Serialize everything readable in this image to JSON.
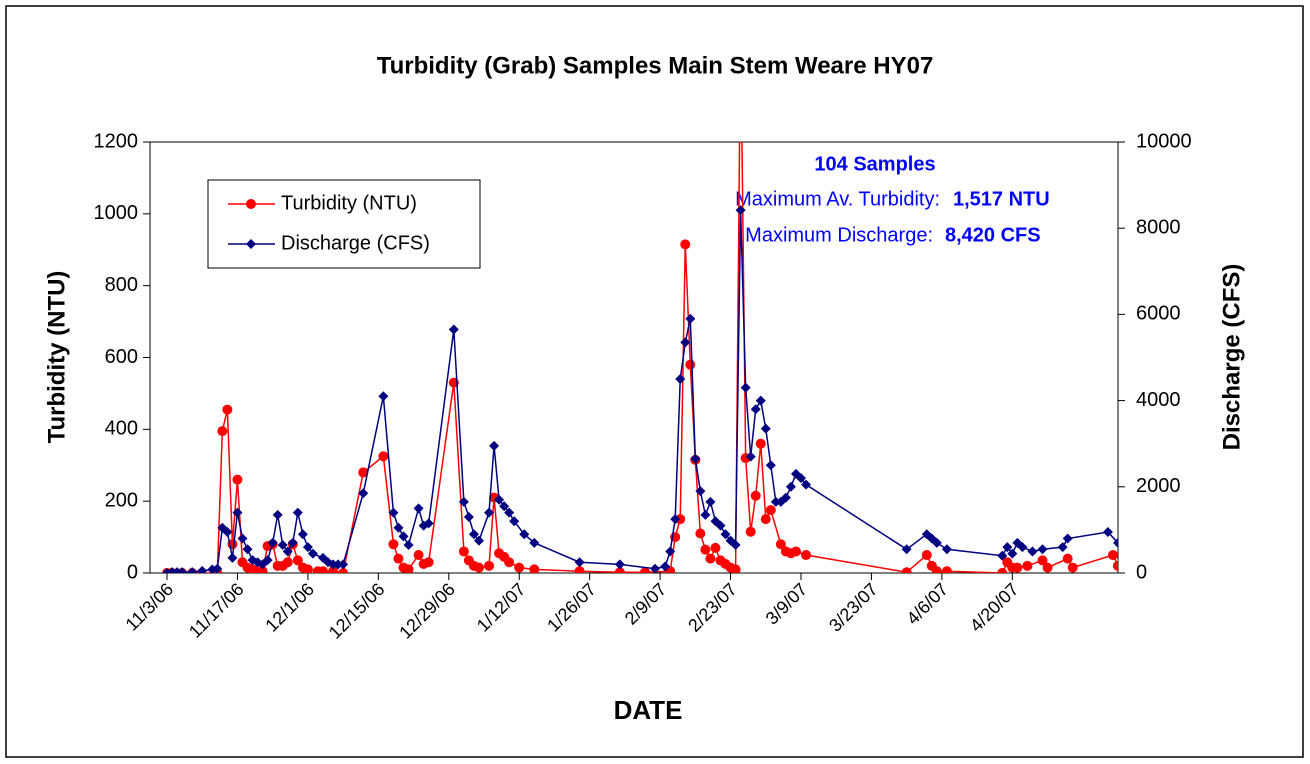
{
  "chart_data": {
    "type": "line",
    "title": "Turbidity (Grab) Samples Main Stem Weare HY07",
    "xlabel": "DATE",
    "ylabel": "Turbidity (NTU)",
    "y2label": "Discharge (CFS)",
    "annotations": [
      "104 Samples",
      "Maximum Av. Turbidity:",
      "1,517 NTU",
      "Maximum Discharge:",
      "8,420 CFS"
    ],
    "xlim": [
      "11/3/06",
      "5/11/07"
    ],
    "xticks": [
      "11/3/06",
      "11/17/06",
      "12/1/06",
      "12/15/06",
      "12/29/06",
      "1/12/07",
      "1/26/07",
      "2/9/07",
      "2/23/07",
      "3/9/07",
      "3/23/07",
      "4/6/07",
      "4/20/07"
    ],
    "ylim": [
      0,
      1200
    ],
    "yticks": [
      0,
      200,
      400,
      600,
      800,
      1000,
      1200
    ],
    "y2lim": [
      0,
      10000
    ],
    "y2ticks": [
      0,
      2000,
      4000,
      6000,
      8000,
      10000
    ],
    "legend": "upper left",
    "series": [
      {
        "name": "Turbidity (NTU)",
        "color": "#ff0000",
        "marker": "circle",
        "x": [
          "11/3/06",
          "11/4/06",
          "11/6/06",
          "11/8/06",
          "11/13/06",
          "11/14/06",
          "11/15/06",
          "11/16/06",
          "11/17/06",
          "11/18/06",
          "11/19/06",
          "11/20/06",
          "11/21/06",
          "11/22/06",
          "11/23/06",
          "11/24/06",
          "11/25/06",
          "11/26/06",
          "11/27/06",
          "11/28/06",
          "11/29/06",
          "11/30/06",
          "12/1/06",
          "12/3/06",
          "12/4/06",
          "12/6/06",
          "12/8/06",
          "12/12/06",
          "12/16/06",
          "12/18/06",
          "12/19/06",
          "12/20/06",
          "12/21/06",
          "12/23/06",
          "12/24/06",
          "12/25/06",
          "12/30/06",
          "1/1/07",
          "1/2/07",
          "1/3/07",
          "1/4/07",
          "1/6/07",
          "1/7/07",
          "1/8/07",
          "1/9/07",
          "1/10/07",
          "1/12/07",
          "1/15/07",
          "1/24/07",
          "2/1/07",
          "2/6/07",
          "2/11/07",
          "2/12/07",
          "2/13/07",
          "2/14/07",
          "2/15/07",
          "2/16/07",
          "2/17/07",
          "2/18/07",
          "2/19/07",
          "2/20/07",
          "2/21/07",
          "2/22/07",
          "2/23/07",
          "2/24/07",
          "2/25/07",
          "2/26/07",
          "2/27/07",
          "2/28/07",
          "3/1/07",
          "3/2/07",
          "3/3/07",
          "3/5/07",
          "3/6/07",
          "3/7/07",
          "3/8/07",
          "3/10/07",
          "3/30/07",
          "4/3/07",
          "4/4/07",
          "4/5/07",
          "4/7/07",
          "4/18/07",
          "4/19/07",
          "4/20/07",
          "4/21/07",
          "4/23/07",
          "4/26/07",
          "4/27/07",
          "5/1/07",
          "5/2/07",
          "5/10/07",
          "5/11/07"
        ],
        "values": [
          0,
          0,
          0,
          0,
          0,
          395,
          455,
          80,
          260,
          30,
          15,
          10,
          5,
          5,
          75,
          80,
          20,
          20,
          30,
          80,
          35,
          15,
          10,
          5,
          5,
          5,
          0,
          280,
          325,
          80,
          40,
          15,
          10,
          50,
          25,
          30,
          530,
          60,
          35,
          20,
          15,
          20,
          210,
          55,
          45,
          30,
          15,
          10,
          5,
          2,
          2,
          5,
          100,
          150,
          915,
          580,
          315,
          110,
          65,
          40,
          70,
          35,
          25,
          15,
          10,
          1517,
          320,
          115,
          215,
          360,
          150,
          175,
          80,
          60,
          55,
          60,
          50,
          2,
          50,
          20,
          5,
          5,
          0,
          30,
          15,
          15,
          20,
          35,
          15,
          40,
          15,
          50,
          20
        ]
      },
      {
        "name": "Discharge (CFS)",
        "color": "#000080",
        "marker": "diamond",
        "axis": "y2",
        "x": [
          "11/3/06",
          "11/4/06",
          "11/5/06",
          "11/6/06",
          "11/8/06",
          "11/10/06",
          "11/12/06",
          "11/13/06",
          "11/14/06",
          "11/15/06",
          "11/16/06",
          "11/17/06",
          "11/18/06",
          "11/19/06",
          "11/20/06",
          "11/21/06",
          "11/22/06",
          "11/23/06",
          "11/24/06",
          "11/25/06",
          "11/26/06",
          "11/27/06",
          "11/28/06",
          "11/29/06",
          "11/30/06",
          "12/1/06",
          "12/2/06",
          "12/4/06",
          "12/5/06",
          "12/6/06",
          "12/7/06",
          "12/8/06",
          "12/12/06",
          "12/16/06",
          "12/18/06",
          "12/19/06",
          "12/20/06",
          "12/21/06",
          "12/23/06",
          "12/24/06",
          "12/25/06",
          "12/30/06",
          "1/1/07",
          "1/2/07",
          "1/3/07",
          "1/4/07",
          "1/6/07",
          "1/7/07",
          "1/8/07",
          "1/9/07",
          "1/10/07",
          "1/11/07",
          "1/13/07",
          "1/15/07",
          "1/24/07",
          "2/1/07",
          "2/8/07",
          "2/10/07",
          "2/11/07",
          "2/12/07",
          "2/13/07",
          "2/14/07",
          "2/15/07",
          "2/16/07",
          "2/17/07",
          "2/18/07",
          "2/19/07",
          "2/20/07",
          "2/21/07",
          "2/22/07",
          "2/23/07",
          "2/24/07",
          "2/25/07",
          "2/26/07",
          "2/27/07",
          "2/28/07",
          "3/1/07",
          "3/2/07",
          "3/3/07",
          "3/4/07",
          "3/5/07",
          "3/6/07",
          "3/7/07",
          "3/8/07",
          "3/9/07",
          "3/10/07",
          "3/30/07",
          "4/3/07",
          "4/4/07",
          "4/5/07",
          "4/7/07",
          "4/18/07",
          "4/19/07",
          "4/20/07",
          "4/21/07",
          "4/22/07",
          "4/24/07",
          "4/26/07",
          "4/30/07",
          "5/1/07",
          "5/9/07",
          "5/11/07"
        ],
        "values": [
          0,
          20,
          20,
          20,
          20,
          50,
          80,
          100,
          1050,
          950,
          350,
          1400,
          800,
          550,
          300,
          250,
          200,
          300,
          700,
          1350,
          650,
          500,
          700,
          1400,
          900,
          600,
          450,
          350,
          250,
          200,
          200,
          200,
          1850,
          4100,
          1400,
          1050,
          850,
          650,
          1500,
          1100,
          1150,
          5650,
          1650,
          1300,
          900,
          750,
          1400,
          2950,
          1700,
          1550,
          1400,
          1200,
          900,
          700,
          250,
          200,
          100,
          150,
          500,
          1250,
          4500,
          5350,
          5900,
          2650,
          1900,
          1350,
          1650,
          1200,
          1100,
          900,
          750,
          650,
          8420,
          4300,
          2700,
          3800,
          4000,
          3350,
          2500,
          1650,
          1650,
          1750,
          2000,
          2300,
          2200,
          2050,
          550,
          900,
          800,
          700,
          550,
          400,
          600,
          450,
          700,
          600,
          500,
          550,
          600,
          800,
          950,
          700
        ]
      }
    ]
  }
}
